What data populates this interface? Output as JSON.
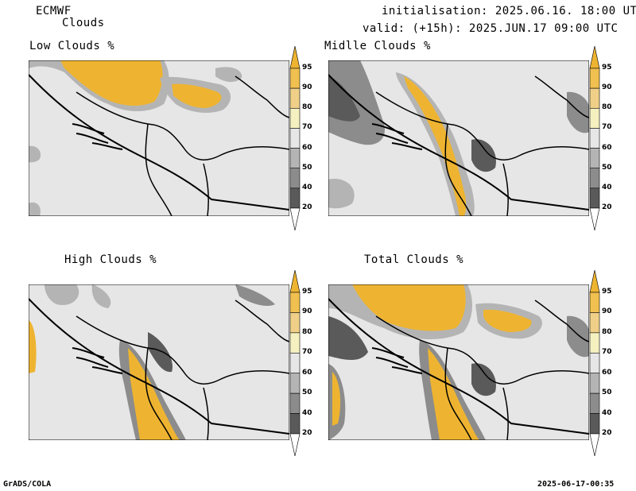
{
  "header": {
    "model": "ECMWF",
    "product": "Clouds",
    "init": "initialisation: 2025.06.16. 18:00 UTC",
    "valid": "valid: (+15h): 2025.JUN.17 09:00 UTC"
  },
  "footer": {
    "left": "GrADS/COLA",
    "right": "2025-06-17-00:35"
  },
  "panels": [
    {
      "title": "Low Clouds %"
    },
    {
      "title": "Midlle Clouds %"
    },
    {
      "title": "High Clouds %"
    },
    {
      "title": "Total Clouds %"
    }
  ],
  "colorbar": {
    "levels": [
      "20",
      "40",
      "50",
      "60",
      "70",
      "80",
      "90",
      "95"
    ],
    "colors": {
      "below20": "#ffffff",
      "20-40": "#5a5a5a",
      "40-50": "#8c8c8c",
      "50-60": "#b4b4b4",
      "60-70": "#e6e6e6",
      "70-80": "#f5f0c0",
      "80-90": "#f0d088",
      "90-95": "#f0c050",
      "above95": "#eeb431"
    }
  }
}
